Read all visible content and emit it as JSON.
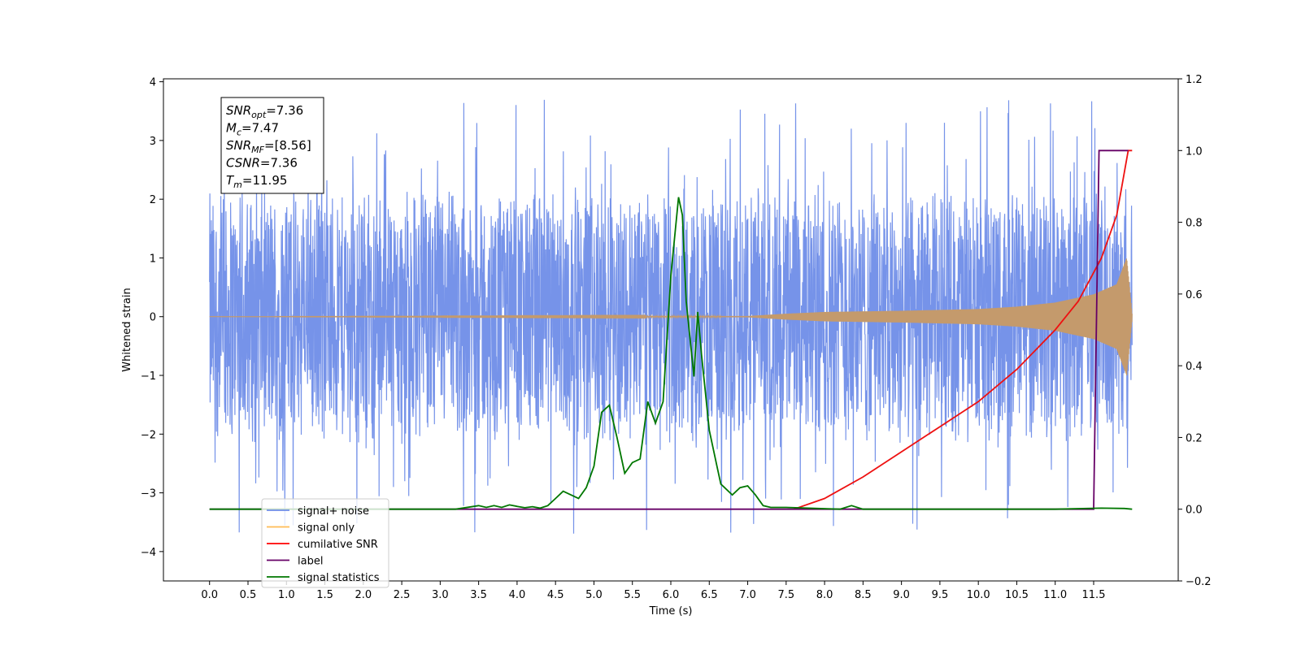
{
  "chart_data": {
    "type": "line",
    "title": "",
    "xlabel": "Time (s)",
    "ylabel": "Whitened strain",
    "y2label": "",
    "xlim": [
      -0.6,
      12.6
    ],
    "ylim": [
      -4.5,
      4.05
    ],
    "y2lim": [
      -0.2,
      1.2
    ],
    "grid": false,
    "x_ticks": [
      "0.0",
      "0.5",
      "1.0",
      "1.5",
      "2.0",
      "2.5",
      "3.0",
      "3.5",
      "4.0",
      "4.5",
      "5.0",
      "5.5",
      "6.0",
      "6.5",
      "7.0",
      "7.5",
      "8.0",
      "8.5",
      "9.0",
      "9.5",
      "10.0",
      "10.5",
      "11.0",
      "11.5"
    ],
    "y_ticks": [
      "4",
      "3",
      "2",
      "1",
      "0",
      "−1",
      "−2",
      "−3",
      "−4"
    ],
    "y2_ticks": [
      "1.2",
      "1.0",
      "0.8",
      "0.6",
      "0.4",
      "0.2",
      "0.0",
      "−0.2"
    ],
    "legend": {
      "placement": "lower-left",
      "entries": [
        {
          "label": "signal+ noise",
          "color": "#6f8de8"
        },
        {
          "label": "signal only",
          "color": "#ffbb55"
        },
        {
          "label": "cumilative SNR",
          "color": "#ff0000"
        },
        {
          "label": "label",
          "color": "#660066"
        },
        {
          "label": "signal statistics",
          "color": "#007700"
        }
      ]
    },
    "annotation": {
      "placement": "top-left",
      "lines": [
        {
          "sym": "SNR",
          "sub": "opt",
          "val": "=7.36"
        },
        {
          "sym": "M",
          "sub": "c",
          "val": "=7.47"
        },
        {
          "sym": "SNR",
          "sub": "MF",
          "val": "=[8.56]"
        },
        {
          "sym": "CSNR",
          "sub": "",
          "val": "=7.36"
        },
        {
          "sym": "T",
          "sub": "m",
          "val": "=11.95"
        }
      ]
    },
    "series": [
      {
        "name": "signal+ noise",
        "axis": "left",
        "color": "#6f8de8",
        "kind": "noise",
        "x_range": [
          0.0,
          12.0
        ],
        "envelope": 2.3,
        "peak": 3.7
      },
      {
        "name": "signal only",
        "axis": "left",
        "color": "#c49a6c",
        "kind": "chirp",
        "x_range": [
          0.0,
          12.0
        ],
        "envelope_x": [
          0.0,
          7.0,
          7.5,
          8.0,
          9.0,
          10.0,
          10.5,
          11.0,
          11.5,
          11.8,
          11.93,
          12.0
        ],
        "envelope_y": [
          0.0,
          0.01,
          0.05,
          0.08,
          0.1,
          0.13,
          0.17,
          0.24,
          0.38,
          0.55,
          1.0,
          0.05
        ]
      },
      {
        "name": "cumilative SNR",
        "axis": "right",
        "color": "#ee1111",
        "x": [
          7.6,
          8.0,
          8.5,
          9.0,
          9.5,
          10.0,
          10.5,
          11.0,
          11.3,
          11.6,
          11.8,
          11.95,
          12.0
        ],
        "y": [
          0.0,
          0.03,
          0.09,
          0.16,
          0.23,
          0.3,
          0.39,
          0.5,
          0.58,
          0.7,
          0.82,
          1.0,
          1.0
        ]
      },
      {
        "name": "label",
        "axis": "right",
        "color": "#660066",
        "x": [
          0.0,
          11.5,
          11.57,
          11.95
        ],
        "y": [
          0.0,
          0.0,
          1.0,
          1.0
        ]
      },
      {
        "name": "signal statistics",
        "axis": "right",
        "color": "#007700",
        "x": [
          0.0,
          3.2,
          3.5,
          3.6,
          3.7,
          3.8,
          3.9,
          4.0,
          4.1,
          4.2,
          4.3,
          4.4,
          4.5,
          4.6,
          4.7,
          4.8,
          4.9,
          5.0,
          5.1,
          5.2,
          5.3,
          5.4,
          5.5,
          5.6,
          5.7,
          5.8,
          5.9,
          6.0,
          6.1,
          6.15,
          6.2,
          6.3,
          6.35,
          6.4,
          6.5,
          6.6,
          6.65,
          6.7,
          6.8,
          6.9,
          7.0,
          7.1,
          7.2,
          7.3,
          7.5,
          8.2,
          8.35,
          8.5,
          11.0,
          11.6,
          11.9,
          12.0
        ],
        "y": [
          0.0,
          0.0,
          0.01,
          0.005,
          0.01,
          0.005,
          0.012,
          0.008,
          0.004,
          0.007,
          0.003,
          0.01,
          0.03,
          0.05,
          0.04,
          0.03,
          0.06,
          0.12,
          0.27,
          0.29,
          0.2,
          0.1,
          0.13,
          0.14,
          0.3,
          0.24,
          0.3,
          0.65,
          0.87,
          0.82,
          0.58,
          0.37,
          0.55,
          0.43,
          0.22,
          0.12,
          0.07,
          0.06,
          0.04,
          0.06,
          0.065,
          0.04,
          0.01,
          0.005,
          0.005,
          0.0,
          0.01,
          0.0,
          0.0,
          0.003,
          0.002,
          0.0
        ]
      }
    ]
  }
}
